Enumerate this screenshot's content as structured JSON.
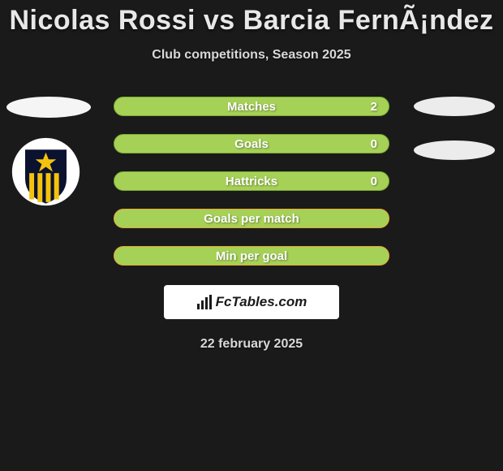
{
  "header": {
    "title": "Nicolas Rossi vs Barcia FernÃ¡ndez",
    "subtitle": "Club competitions, Season 2025"
  },
  "stats": [
    {
      "label": "Matches",
      "right_value": "2",
      "show_value": true,
      "bg_color": "#a6d157",
      "border_color": "#7caa32"
    },
    {
      "label": "Goals",
      "right_value": "0",
      "show_value": true,
      "bg_color": "#a6d157",
      "border_color": "#7caa32"
    },
    {
      "label": "Hattricks",
      "right_value": "0",
      "show_value": true,
      "bg_color": "#a6d157",
      "border_color": "#7caa32"
    },
    {
      "label": "Goals per match",
      "right_value": "",
      "show_value": false,
      "bg_color": "#a6d157",
      "border_color": "#e6a835"
    },
    {
      "label": "Min per goal",
      "right_value": "",
      "show_value": false,
      "bg_color": "#a6d157",
      "border_color": "#e6a835"
    }
  ],
  "logo": {
    "brand_text": "FcTables.com"
  },
  "footer": {
    "date": "22 february 2025"
  },
  "crest": {
    "bg": "#ffffff",
    "shield_fill": "#0b1230",
    "stripe_color": "#f4c20d",
    "star_color": "#f4c20d"
  },
  "colors": {
    "page_bg": "#1a1a1a",
    "title_color": "#e8e8e8",
    "subtitle_color": "#d8d8d8"
  }
}
